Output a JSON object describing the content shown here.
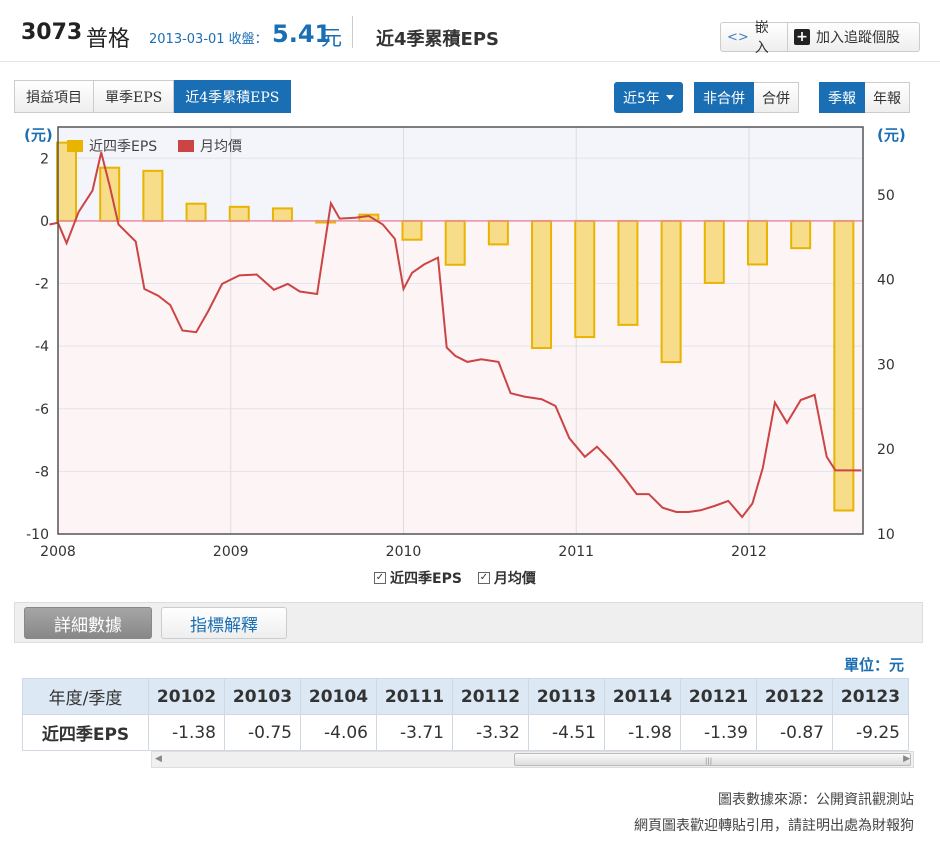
{
  "header": {
    "code": "3073",
    "name": "普格",
    "date_label": "2013-03-01 收盤：",
    "price": "5.41",
    "price_unit": "元",
    "title": "近4季累積EPS",
    "embed_label": "嵌入",
    "track_label": "加入追蹤個股"
  },
  "tabs": [
    "損益項目",
    "單季EPS",
    "近4季累積EPS"
  ],
  "controls": {
    "range": "近5年",
    "consolidation": [
      "非合併",
      "合併"
    ],
    "frequency": [
      "季報",
      "年報"
    ]
  },
  "chart_data": {
    "type": "bar+line",
    "left_axis_label": "(元)",
    "right_axis_label": "(元)",
    "x_ticks": [
      "2008",
      "2009",
      "2010",
      "2011",
      "2012"
    ],
    "left_ticks": [
      "2",
      "0",
      "-2",
      "-4",
      "-6",
      "-8",
      "-10"
    ],
    "right_ticks": [
      "50",
      "40",
      "30",
      "20",
      "10"
    ],
    "ylim_left": [
      -10,
      3
    ],
    "ylim_right": [
      10,
      58
    ],
    "series": [
      {
        "name": "近四季EPS",
        "color": "#e8b400",
        "x": [
          2008.0,
          2008.25,
          2008.5,
          2008.75,
          2009.0,
          2009.25,
          2009.5,
          2009.75,
          2010.0,
          2010.25,
          2010.5,
          2010.75,
          2011.0,
          2011.25,
          2011.5,
          2011.75,
          2012.0,
          2012.25,
          2012.5
        ],
        "values": [
          2.5,
          1.7,
          1.6,
          0.55,
          0.45,
          0.4,
          -0.05,
          0.2,
          -0.6,
          -1.4,
          -0.75,
          -4.06,
          -3.71,
          -3.32,
          -4.51,
          -1.98,
          -1.39,
          -0.87,
          -9.25
        ]
      },
      {
        "name": "月均價",
        "color": "#cc4444",
        "x": [
          2007.95,
          2008.0,
          2008.05,
          2008.12,
          2008.2,
          2008.25,
          2008.3,
          2008.35,
          2008.45,
          2008.5,
          2008.58,
          2008.65,
          2008.72,
          2008.8,
          2008.87,
          2008.95,
          2009.05,
          2009.15,
          2009.25,
          2009.33,
          2009.4,
          2009.5,
          2009.58,
          2009.63,
          2009.72,
          2009.8,
          2009.88,
          2009.95,
          2010.0,
          2010.05,
          2010.12,
          2010.2,
          2010.25,
          2010.3,
          2010.37,
          2010.45,
          2010.55,
          2010.62,
          2010.7,
          2010.8,
          2010.88,
          2010.96,
          2011.05,
          2011.12,
          2011.2,
          2011.28,
          2011.35,
          2011.42,
          2011.5,
          2011.58,
          2011.65,
          2011.72,
          2011.8,
          2011.88,
          2011.96,
          2012.02,
          2012.08,
          2012.15,
          2012.22,
          2012.3,
          2012.38,
          2012.45,
          2012.5,
          2012.55,
          2012.6,
          2012.65
        ],
        "values": [
          46.5,
          46.7,
          44.3,
          48.0,
          50.5,
          55.0,
          51.0,
          46.5,
          44.5,
          38.9,
          38.1,
          37.0,
          34.0,
          33.8,
          36.3,
          39.5,
          40.5,
          40.6,
          38.8,
          39.5,
          38.6,
          38.3,
          49.0,
          47.2,
          47.3,
          47.5,
          46.5,
          44.8,
          38.9,
          40.8,
          41.8,
          42.6,
          32.0,
          31.0,
          30.3,
          30.6,
          30.3,
          26.6,
          26.2,
          25.9,
          25.1,
          21.3,
          19.1,
          20.3,
          18.6,
          16.6,
          14.7,
          14.7,
          13.1,
          12.6,
          12.6,
          12.8,
          13.3,
          13.9,
          12.0,
          13.6,
          17.8,
          25.5,
          23.1,
          25.8,
          26.4,
          19.1,
          17.5,
          17.5,
          17.5,
          17.5
        ]
      }
    ],
    "legend_position": "top-left"
  },
  "legend_bottom": [
    "近四季EPS",
    "月均價"
  ],
  "detail": {
    "tab_data": "詳細數據",
    "tab_explain": "指標解釋",
    "unit": "單位：元"
  },
  "table": {
    "row_header": "年度/季度",
    "row_label": "近四季EPS",
    "columns": [
      "20102",
      "20103",
      "20104",
      "20111",
      "20112",
      "20113",
      "20114",
      "20121",
      "20122",
      "20123"
    ],
    "values": [
      "-1.38",
      "-0.75",
      "-4.06",
      "-3.71",
      "-3.32",
      "-4.51",
      "-1.98",
      "-1.39",
      "-0.87",
      "-9.25"
    ]
  },
  "footer": {
    "source": "圖表數據來源：公開資訊觀測站",
    "note": "網頁圖表歡迎轉貼引用，請註明出處為財報狗"
  }
}
